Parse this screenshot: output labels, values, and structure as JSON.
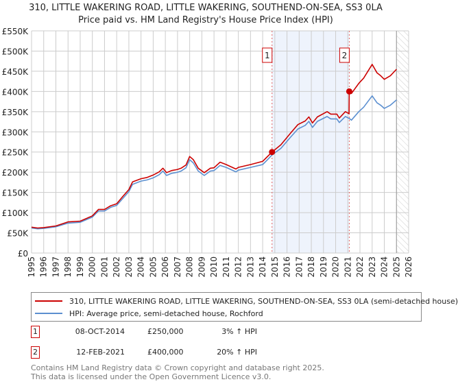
{
  "chart_data": {
    "type": "line",
    "title": "310, LITTLE WAKERING ROAD, LITTLE WAKERING, SOUTHEND-ON-SEA, SS3 0LA",
    "subtitle": "Price paid vs. HM Land Registry's House Price Index (HPI)",
    "xlabel": "",
    "ylabel": "",
    "xlim": [
      1995,
      2026
    ],
    "ylim": [
      0,
      550000
    ],
    "x_ticks": [
      "1995",
      "1996",
      "1997",
      "1998",
      "1999",
      "2000",
      "2001",
      "2002",
      "2003",
      "2004",
      "2005",
      "2006",
      "2007",
      "2008",
      "2009",
      "2010",
      "2011",
      "2012",
      "2013",
      "2014",
      "2015",
      "2016",
      "2017",
      "2018",
      "2019",
      "2020",
      "2021",
      "2022",
      "2023",
      "2024",
      "2025",
      "2026"
    ],
    "y_ticks": [
      {
        "value": 0,
        "label": "£0"
      },
      {
        "value": 50000,
        "label": "£50K"
      },
      {
        "value": 100000,
        "label": "£100K"
      },
      {
        "value": 150000,
        "label": "£150K"
      },
      {
        "value": 200000,
        "label": "£200K"
      },
      {
        "value": 250000,
        "label": "£250K"
      },
      {
        "value": 300000,
        "label": "£300K"
      },
      {
        "value": 350000,
        "label": "£350K"
      },
      {
        "value": 400000,
        "label": "£400K"
      },
      {
        "value": 450000,
        "label": "£450K"
      },
      {
        "value": 500000,
        "label": "£500K"
      },
      {
        "value": 550000,
        "label": "£550K"
      }
    ],
    "grid": true,
    "shaded_range": [
      2014.77,
      2021.12
    ],
    "hatched_from": 2025.0,
    "series": [
      {
        "name": "310, LITTLE WAKERING ROAD, LITTLE WAKERING, SOUTHEND-ON-SEA, SS3 0LA (semi-detached house)",
        "color": "#cc0000",
        "x": [
          1995,
          1995.5,
          1996,
          1997,
          1998,
          1999,
          2000,
          2000.5,
          2001,
          2001.5,
          2002,
          2002.5,
          2003,
          2003.3,
          2004,
          2004.5,
          2005,
          2005.5,
          2005.8,
          2006.1,
          2006.5,
          2007,
          2007.3,
          2007.7,
          2008,
          2008.3,
          2008.7,
          2009.2,
          2009.7,
          2010,
          2010.5,
          2011,
          2011.8,
          2012,
          2013,
          2014,
          2014.3,
          2014.77,
          2015.5,
          2016.3,
          2016.9,
          2017.5,
          2017.8,
          2018.1,
          2018.5,
          2019.3,
          2019.6,
          2020.1,
          2020.3,
          2020.8,
          2021.1,
          2021.12,
          2021.3,
          2021.9,
          2022.3,
          2023,
          2023.4,
          2023.7,
          2024,
          2024.5,
          2025
        ],
        "y": [
          64000,
          62000,
          63000,
          67000,
          77000,
          79000,
          92000,
          108000,
          108000,
          117000,
          122000,
          140000,
          157000,
          176000,
          184000,
          187000,
          193000,
          201000,
          210000,
          199000,
          204000,
          207000,
          210000,
          218000,
          239000,
          231000,
          210000,
          199000,
          210000,
          211000,
          225000,
          219000,
          208000,
          212000,
          219000,
          227000,
          236000,
          250000,
          268000,
          297000,
          318000,
          327000,
          337000,
          322000,
          337000,
          350000,
          344000,
          344000,
          334000,
          350000,
          345000,
          400000,
          395000,
          420000,
          433000,
          467000,
          446000,
          439000,
          430000,
          439000,
          455000
        ]
      },
      {
        "name": "HPI: Average price, semi-detached house, Rochford",
        "color": "#5b8fd0",
        "x": [
          1995,
          1995.5,
          1996,
          1997,
          1998,
          1999,
          2000,
          2000.5,
          2001,
          2001.5,
          2002,
          2002.5,
          2003,
          2003.3,
          2004,
          2004.5,
          2005,
          2005.5,
          2005.8,
          2006.1,
          2006.5,
          2007,
          2007.3,
          2007.7,
          2008,
          2008.3,
          2008.7,
          2009.2,
          2009.7,
          2010,
          2010.5,
          2011,
          2011.8,
          2012,
          2013,
          2014,
          2014.3,
          2014.77,
          2015.5,
          2016.3,
          2016.9,
          2017.5,
          2017.8,
          2018.1,
          2018.5,
          2019.3,
          2019.6,
          2020.1,
          2020.3,
          2020.8,
          2021.12,
          2021.3,
          2021.9,
          2022.3,
          2023,
          2023.4,
          2023.7,
          2024,
          2024.5,
          2025
        ],
        "y": [
          62000,
          60000,
          61000,
          65000,
          74000,
          76000,
          89000,
          104000,
          104000,
          113000,
          118000,
          135000,
          152000,
          170000,
          178000,
          181000,
          186000,
          194000,
          203000,
          192000,
          197000,
          200000,
          203000,
          211000,
          231000,
          223000,
          203000,
          192000,
          203000,
          204000,
          217000,
          212000,
          201000,
          205000,
          212000,
          219000,
          228000,
          243000,
          259000,
          287000,
          307000,
          316000,
          326000,
          311000,
          326000,
          338000,
          332000,
          332000,
          323000,
          338000,
          333000,
          329000,
          350000,
          361000,
          389000,
          372000,
          366000,
          358000,
          366000,
          379000
        ]
      }
    ],
    "sales": [
      {
        "label": "1",
        "x": 2014.77,
        "y": 250000
      },
      {
        "label": "2",
        "x": 2021.12,
        "y": 400000
      }
    ]
  },
  "legend": {
    "property": "310, LITTLE WAKERING ROAD, LITTLE WAKERING, SOUTHEND-ON-SEA, SS3 0LA (semi-detached house)",
    "hpi": "HPI: Average price, semi-detached house, Rochford"
  },
  "sales_table": [
    {
      "num": "1",
      "date": "08-OCT-2014",
      "price": "£250,000",
      "hpi": "3% ↑ HPI"
    },
    {
      "num": "2",
      "date": "12-FEB-2021",
      "price": "£400,000",
      "hpi": "20% ↑ HPI"
    }
  ],
  "footer": {
    "line1": "Contains HM Land Registry data © Crown copyright and database right 2025.",
    "line2": "This data is licensed under the Open Government Licence v3.0."
  }
}
